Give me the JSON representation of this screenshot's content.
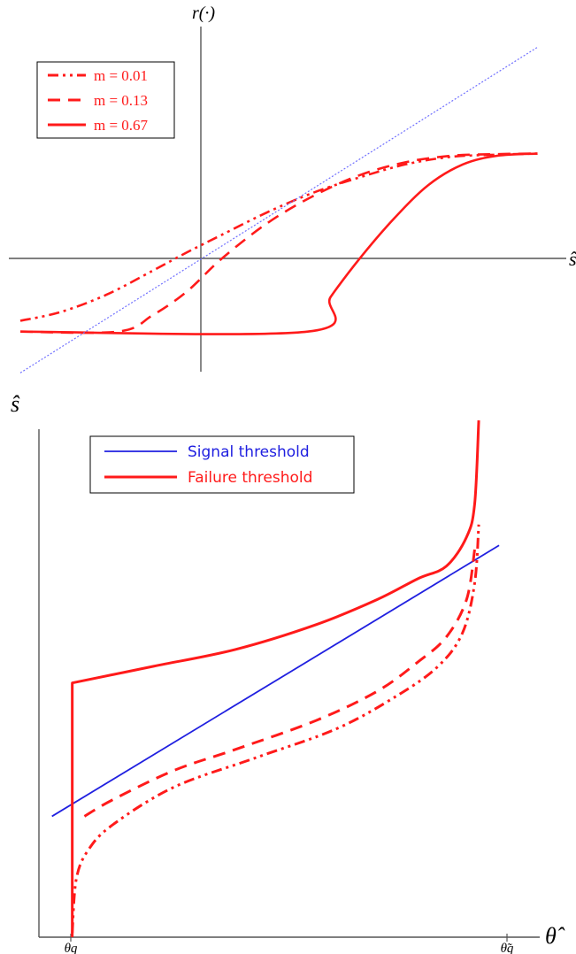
{
  "chart_data": [
    {
      "type": "line",
      "ylabel": "r(·)",
      "xlabel": "ŝ",
      "legend_position": "top-left",
      "colors": {
        "curves": "#ff1a1a",
        "identity": "#7070ff",
        "axes": "#555555"
      },
      "series": [
        {
          "name": "m = 0.01",
          "legend_label": "m = 0.01",
          "style": "dash-dot-dot",
          "x": [
            -1.75,
            -1.4,
            -1.0,
            -0.6,
            -0.3,
            0,
            0.4,
            0.8,
            1.2,
            1.6,
            2.0,
            2.4,
            2.75
          ],
          "y": [
            -0.52,
            -0.44,
            -0.28,
            -0.06,
            0.11,
            0.27,
            0.48,
            0.66,
            0.8,
            0.92,
            0.99,
            1.01,
            1.02
          ]
        },
        {
          "name": "m = 0.13",
          "legend_label": "m = 0.13",
          "style": "dashed",
          "x": [
            -1.75,
            -0.9,
            -0.6,
            -0.3,
            0,
            0.4,
            0.8,
            1.2,
            1.6,
            2.0,
            2.4,
            2.75
          ],
          "y": [
            -0.62,
            -0.62,
            -0.47,
            -0.25,
            0.05,
            0.38,
            0.63,
            0.82,
            0.94,
            1.0,
            1.015,
            1.02
          ]
        },
        {
          "name": "m = 0.67",
          "legend_label": "m = 0.67",
          "style": "solid",
          "x": [
            -1.75,
            0.75,
            0.95,
            1.2,
            1.5,
            1.8,
            2.1,
            2.4,
            2.75
          ],
          "y": [
            -0.62,
            -0.62,
            -0.3,
            0.05,
            0.42,
            0.73,
            0.92,
            1.0,
            1.02
          ]
        },
        {
          "style": "dotted-identity",
          "x": [
            -1.75,
            2.75
          ],
          "y": [
            -1.0,
            2.0
          ]
        }
      ],
      "xlim": [
        -1.85,
        3.0
      ],
      "ylim": [
        -1.03,
        2.19
      ],
      "grid": false
    },
    {
      "type": "line",
      "ylabel": "ŝ",
      "xlabel": "θ̂",
      "xtick_labels": [
        "θq",
        "θ̃q"
      ],
      "legend_position": "top-left",
      "colors": {
        "signal": "#2020e0",
        "failure": "#ff1a1a",
        "axes": "#555555"
      },
      "series": [
        {
          "name": "Signal threshold",
          "legend_label": "Signal threshold",
          "style": "solid",
          "x": [
            -0.05,
            1.05
          ],
          "y": [
            0.2,
            0.85
          ]
        },
        {
          "name": "Failure threshold",
          "legend_label": "Failure threshold",
          "style": "solid",
          "x": [
            0,
            0,
            0.0,
            0.2,
            0.4,
            0.6,
            0.75,
            0.85,
            0.92,
            0.97,
            0.99,
            1.0
          ],
          "y": [
            -0.09,
            0.2,
            0.52,
            0.56,
            0.6,
            0.66,
            0.72,
            0.77,
            0.8,
            0.87,
            0.95,
            1.15
          ]
        },
        {
          "style": "dashed",
          "x": [
            0.03,
            0.1,
            0.25,
            0.4,
            0.6,
            0.75,
            0.85,
            0.92,
            0.97,
            0.99
          ],
          "y": [
            0.2,
            0.24,
            0.31,
            0.36,
            0.43,
            0.5,
            0.57,
            0.63,
            0.72,
            0.84
          ]
        },
        {
          "style": "dash-dot-dot",
          "x": [
            0.0,
            0.01,
            0.04,
            0.1,
            0.25,
            0.45,
            0.65,
            0.8,
            0.9,
            0.96,
            0.99,
            1.0
          ],
          "y": [
            -0.08,
            0.05,
            0.12,
            0.18,
            0.27,
            0.34,
            0.41,
            0.49,
            0.56,
            0.64,
            0.76,
            0.9
          ]
        }
      ],
      "xlim": [
        -0.082,
        1.15
      ],
      "ylim": [
        -0.09,
        1.15
      ],
      "grid": false
    }
  ]
}
